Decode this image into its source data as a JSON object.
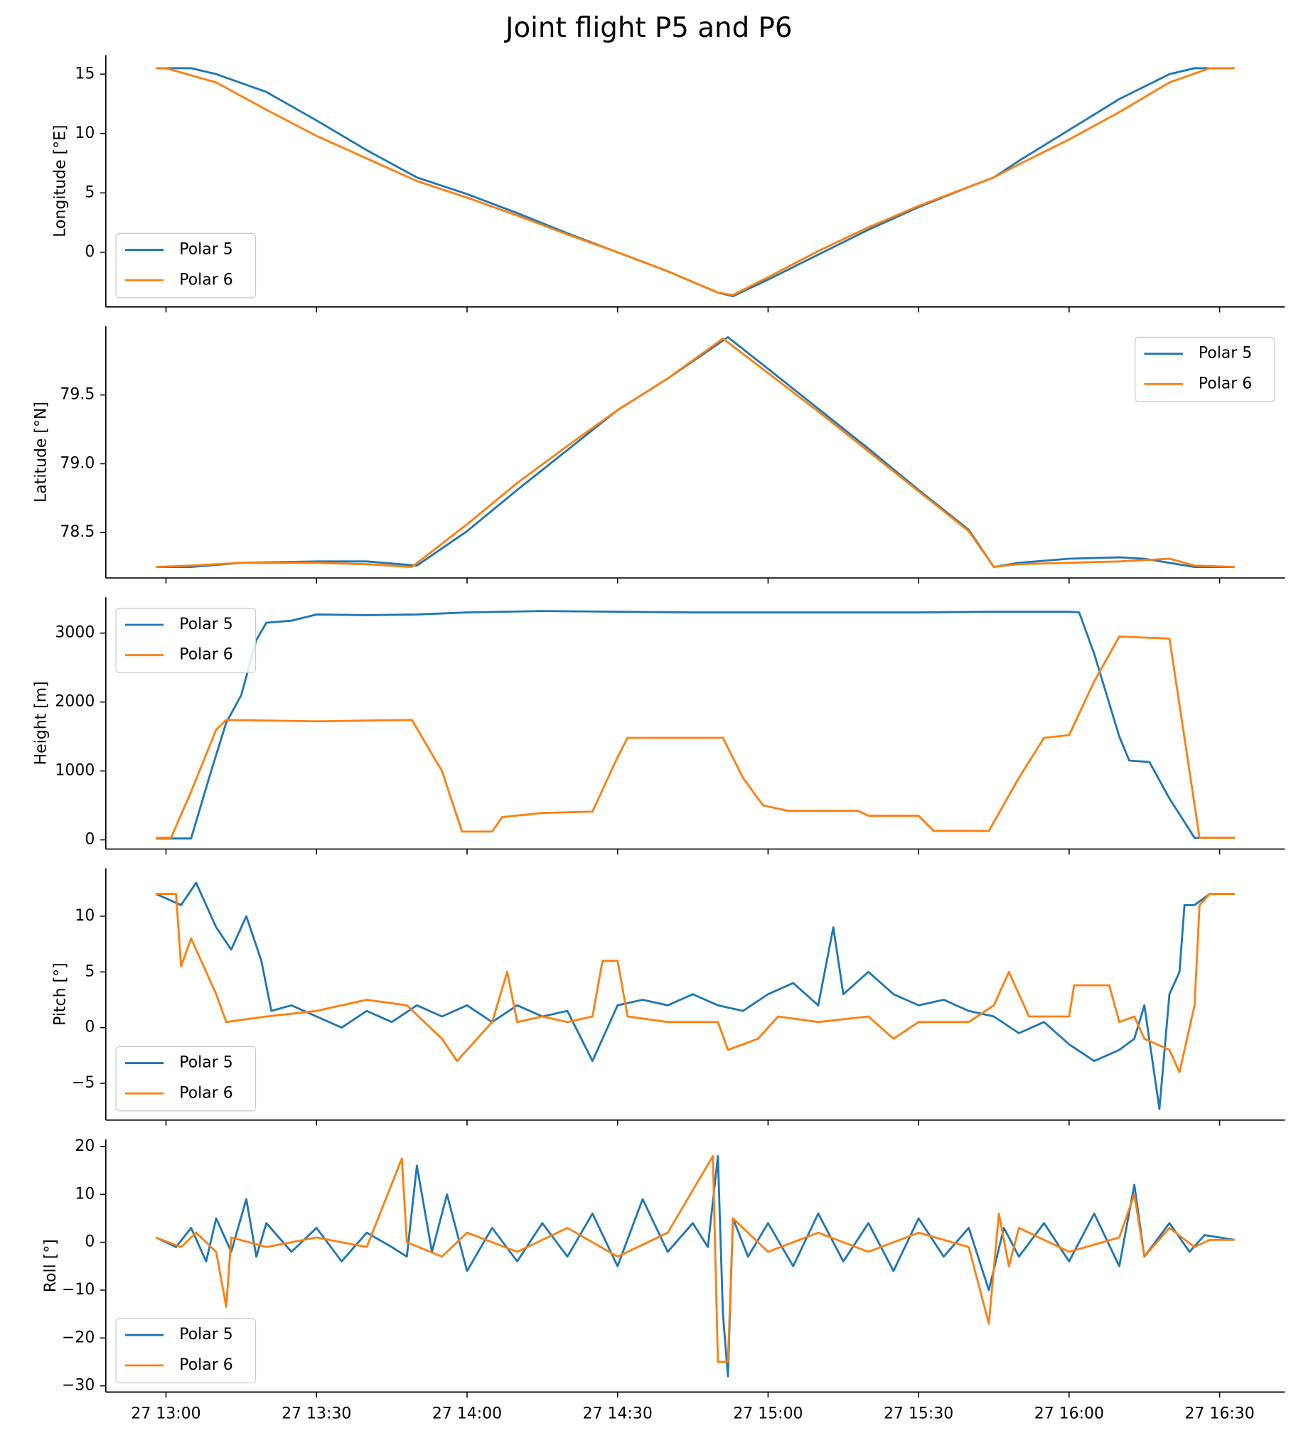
{
  "title": "Joint flight P5 and P6",
  "chart_data": [
    {
      "type": "line",
      "ylabel": "Longitude [°E]",
      "xlim": [
        "27 12:48",
        "27 16:43"
      ],
      "ylim": [
        -4.6,
        16.6
      ],
      "yticks": [
        0,
        5,
        10,
        15
      ],
      "legend": "lower left",
      "series": [
        {
          "name": "Polar 5",
          "color": "#1f77b4",
          "x": [
            "27 12:58",
            "27 13:05",
            "27 13:10",
            "27 13:20",
            "27 13:30",
            "27 13:40",
            "27 13:50",
            "27 14:00",
            "27 14:10",
            "27 14:20",
            "27 14:30",
            "27 14:40",
            "27 14:50",
            "27 14:53",
            "27 15:00",
            "27 15:10",
            "27 15:20",
            "27 15:30",
            "27 15:40",
            "27 15:45",
            "27 15:50",
            "27 16:00",
            "27 16:10",
            "27 16:20",
            "27 16:25",
            "27 16:33"
          ],
          "values": [
            15.5,
            15.5,
            15.0,
            13.5,
            11.1,
            8.6,
            6.3,
            4.9,
            3.3,
            1.6,
            0,
            -1.6,
            -3.4,
            -3.7,
            -2.3,
            -0.2,
            1.9,
            3.8,
            5.5,
            6.3,
            7.7,
            10.3,
            12.9,
            15.0,
            15.5,
            15.5
          ]
        },
        {
          "name": "Polar 6",
          "color": "#ff7f0e",
          "x": [
            "27 12:58",
            "27 13:00",
            "27 13:10",
            "27 13:20",
            "27 13:30",
            "27 13:40",
            "27 13:50",
            "27 14:00",
            "27 14:10",
            "27 14:20",
            "27 14:30",
            "27 14:40",
            "27 14:50",
            "27 14:53",
            "27 15:00",
            "27 15:10",
            "27 15:20",
            "27 15:30",
            "27 15:40",
            "27 15:45",
            "27 15:50",
            "27 16:00",
            "27 16:10",
            "27 16:20",
            "27 16:28",
            "27 16:33"
          ],
          "values": [
            15.5,
            15.5,
            14.3,
            12.0,
            9.8,
            7.9,
            6.0,
            4.6,
            3.1,
            1.5,
            0,
            -1.6,
            -3.4,
            -3.6,
            -2.1,
            0.1,
            2.1,
            3.9,
            5.5,
            6.3,
            7.4,
            9.5,
            11.8,
            14.3,
            15.5,
            15.5
          ]
        }
      ]
    },
    {
      "type": "line",
      "ylabel": "Latitude [°N]",
      "xlim": [
        "27 12:48",
        "27 16:43"
      ],
      "ylim": [
        78.17,
        80.0
      ],
      "yticks": [
        78.5,
        {
          "value": 79,
          "label": "79.0"
        },
        79.5
      ],
      "legend": "upper right",
      "series": [
        {
          "name": "Polar 5",
          "color": "#1f77b4",
          "x": [
            "27 12:58",
            "27 13:05",
            "27 13:15",
            "27 13:30",
            "27 13:40",
            "27 13:50",
            "27 14:00",
            "27 14:10",
            "27 14:20",
            "27 14:30",
            "27 14:40",
            "27 14:52",
            "27 15:00",
            "27 15:10",
            "27 15:20",
            "27 15:30",
            "27 15:40",
            "27 15:45",
            "27 15:50",
            "27 16:00",
            "27 16:10",
            "27 16:15",
            "27 16:20",
            "27 16:25",
            "27 16:33"
          ],
          "values": [
            78.25,
            78.25,
            78.28,
            78.29,
            78.29,
            78.26,
            78.51,
            78.81,
            79.1,
            79.39,
            79.62,
            79.92,
            79.69,
            79.4,
            79.11,
            78.81,
            78.52,
            78.25,
            78.28,
            78.31,
            78.32,
            78.31,
            78.28,
            78.25,
            78.25
          ]
        },
        {
          "name": "Polar 6",
          "color": "#ff7f0e",
          "x": [
            "27 12:58",
            "27 13:05",
            "27 13:15",
            "27 13:30",
            "27 13:40",
            "27 13:49",
            "27 14:00",
            "27 14:10",
            "27 14:20",
            "27 14:30",
            "27 14:40",
            "27 14:51",
            "27 15:00",
            "27 15:10",
            "27 15:20",
            "27 15:30",
            "27 15:40",
            "27 15:45",
            "27 15:50",
            "27 16:00",
            "27 16:10",
            "27 16:15",
            "27 16:20",
            "27 16:25",
            "27 16:33"
          ],
          "values": [
            78.25,
            78.26,
            78.28,
            78.28,
            78.27,
            78.25,
            78.56,
            78.86,
            79.13,
            79.39,
            79.62,
            79.91,
            79.66,
            79.38,
            79.09,
            78.8,
            78.51,
            78.25,
            78.27,
            78.28,
            78.29,
            78.3,
            78.31,
            78.26,
            78.25
          ]
        }
      ]
    },
    {
      "type": "line",
      "ylabel": "Height [m]",
      "xlim": [
        "27 12:48",
        "27 16:43"
      ],
      "ylim": [
        -133,
        3520
      ],
      "yticks": [
        0,
        1000,
        2000,
        3000
      ],
      "legend": "upper left",
      "series": [
        {
          "name": "Polar 5",
          "color": "#1f77b4",
          "x": [
            "27 12:58",
            "27 13:03",
            "27 13:05",
            "27 13:09",
            "27 13:12",
            "27 13:15",
            "27 13:18",
            "27 13:20",
            "27 13:25",
            "27 13:30",
            "27 13:40",
            "27 13:50",
            "27 14:00",
            "27 14:15",
            "27 14:30",
            "27 14:45",
            "27 15:00",
            "27 15:15",
            "27 15:30",
            "27 15:45",
            "27 16:00",
            "27 16:02",
            "27 16:05",
            "27 16:10",
            "27 16:12",
            "27 16:16",
            "27 16:20",
            "27 16:25",
            "27 16:33"
          ],
          "values": [
            20,
            20,
            20,
            1000,
            1700,
            2100,
            2900,
            3150,
            3180,
            3270,
            3260,
            3270,
            3300,
            3320,
            3310,
            3300,
            3300,
            3300,
            3300,
            3310,
            3310,
            3300,
            2700,
            1500,
            1150,
            1130,
            600,
            30,
            30
          ]
        },
        {
          "name": "Polar 6",
          "color": "#ff7f0e",
          "x": [
            "27 12:58",
            "27 13:01",
            "27 13:05",
            "27 13:10",
            "27 13:12",
            "27 13:30",
            "27 13:49",
            "27 13:55",
            "27 13:59",
            "27 14:05",
            "27 14:07",
            "27 14:15",
            "27 14:25",
            "27 14:30",
            "27 14:32",
            "27 14:51",
            "27 14:55",
            "27 14:59",
            "27 15:04",
            "27 15:18",
            "27 15:20",
            "27 15:30",
            "27 15:33",
            "27 15:44",
            "27 15:50",
            "27 15:55",
            "27 16:00",
            "27 16:05",
            "27 16:10",
            "27 16:20",
            "27 16:26",
            "27 16:33"
          ],
          "values": [
            30,
            30,
            700,
            1600,
            1740,
            1720,
            1740,
            1000,
            120,
            120,
            330,
            390,
            410,
            1200,
            1480,
            1480,
            900,
            500,
            420,
            420,
            350,
            350,
            130,
            130,
            900,
            1480,
            1520,
            2300,
            2950,
            2920,
            30,
            30
          ]
        }
      ]
    },
    {
      "type": "line",
      "ylabel": "Pitch [°]",
      "xlim": [
        "27 12:48",
        "27 16:43"
      ],
      "ylim": [
        -8.3,
        14.3
      ],
      "yticks": [
        {
          "value": -5,
          "label": "−5"
        },
        0,
        5,
        10
      ],
      "legend": "lower left",
      "series": [
        {
          "name": "Polar 5",
          "color": "#1f77b4",
          "x": [
            "27 12:58",
            "27 13:03",
            "27 13:06",
            "27 13:10",
            "27 13:13",
            "27 13:16",
            "27 13:19",
            "27 13:21",
            "27 13:25",
            "27 13:30",
            "27 13:35",
            "27 13:40",
            "27 13:45",
            "27 13:50",
            "27 13:55",
            "27 14:00",
            "27 14:05",
            "27 14:10",
            "27 14:15",
            "27 14:20",
            "27 14:25",
            "27 14:30",
            "27 14:35",
            "27 14:40",
            "27 14:45",
            "27 14:50",
            "27 14:55",
            "27 15:00",
            "27 15:05",
            "27 15:10",
            "27 15:13",
            "27 15:15",
            "27 15:20",
            "27 15:25",
            "27 15:30",
            "27 15:35",
            "27 15:40",
            "27 15:45",
            "27 15:50",
            "27 15:55",
            "27 16:00",
            "27 16:05",
            "27 16:10",
            "27 16:13",
            "27 16:15",
            "27 16:18",
            "27 16:20",
            "27 16:22",
            "27 16:23",
            "27 16:25",
            "27 16:28",
            "27 16:33"
          ],
          "values": [
            12,
            11,
            13,
            9,
            7,
            10,
            6,
            1.5,
            2,
            1,
            0,
            1.5,
            0.5,
            2,
            1,
            2,
            0.5,
            2,
            1,
            1.5,
            -3,
            2,
            2.5,
            2,
            3,
            2,
            1.5,
            3,
            4,
            2,
            9,
            3,
            5,
            3,
            2,
            2.5,
            1.5,
            1,
            -0.5,
            0.5,
            -1.5,
            -3,
            -2,
            -1,
            2,
            -7.3,
            3,
            5,
            11,
            11,
            12,
            12
          ]
        },
        {
          "name": "Polar 6",
          "color": "#ff7f0e",
          "x": [
            "27 12:58",
            "27 13:02",
            "27 13:03",
            "27 13:05",
            "27 13:08",
            "27 13:10",
            "27 13:12",
            "27 13:20",
            "27 13:30",
            "27 13:40",
            "27 13:48",
            "27 13:55",
            "27 13:58",
            "27 14:05",
            "27 14:08",
            "27 14:10",
            "27 14:15",
            "27 14:20",
            "27 14:25",
            "27 14:27",
            "27 14:30",
            "27 14:32",
            "27 14:40",
            "27 14:50",
            "27 14:52",
            "27 14:58",
            "27 15:02",
            "27 15:10",
            "27 15:20",
            "27 15:25",
            "27 15:30",
            "27 15:40",
            "27 15:45",
            "27 15:48",
            "27 15:50",
            "27 15:52",
            "27 16:00",
            "27 16:01",
            "27 16:08",
            "27 16:10",
            "27 16:13",
            "27 16:15",
            "27 16:20",
            "27 16:22",
            "27 16:25",
            "27 16:26",
            "27 16:28",
            "27 16:33"
          ],
          "values": [
            12,
            12,
            5.5,
            8,
            5,
            3,
            0.5,
            1,
            1.5,
            2.5,
            2,
            -1,
            -3,
            0.5,
            5,
            0.5,
            1,
            0.5,
            1,
            6,
            6,
            1,
            0.5,
            0.5,
            -2,
            -1,
            1,
            0.5,
            1,
            -1,
            0.5,
            0.5,
            2,
            5,
            3,
            1,
            1,
            3.8,
            3.8,
            0.5,
            1,
            -1,
            -2,
            -4,
            2,
            11,
            12,
            12
          ]
        }
      ]
    },
    {
      "type": "line",
      "ylabel": "Roll [°]",
      "xlim": [
        "27 12:48",
        "27 16:43"
      ],
      "ylim": [
        -31.3,
        21.5
      ],
      "yticks": [
        {
          "value": -30,
          "label": "−30"
        },
        {
          "value": -20,
          "label": "−20"
        },
        {
          "value": -10,
          "label": "−10"
        },
        0,
        10,
        20
      ],
      "legend": "lower left",
      "xticks": [
        "27 13:00",
        "27 13:30",
        "27 14:00",
        "27 14:30",
        "27 15:00",
        "27 15:30",
        "27 16:00",
        "27 16:30"
      ],
      "series": [
        {
          "name": "Polar 5",
          "color": "#1f77b4",
          "x": [
            "27 12:58",
            "27 13:02",
            "27 13:05",
            "27 13:08",
            "27 13:10",
            "27 13:13",
            "27 13:16",
            "27 13:18",
            "27 13:20",
            "27 13:25",
            "27 13:30",
            "27 13:35",
            "27 13:40",
            "27 13:45",
            "27 13:48",
            "27 13:50",
            "27 13:53",
            "27 13:56",
            "27 14:00",
            "27 14:05",
            "27 14:10",
            "27 14:15",
            "27 14:20",
            "27 14:25",
            "27 14:30",
            "27 14:35",
            "27 14:40",
            "27 14:45",
            "27 14:48",
            "27 14:50",
            "27 14:51",
            "27 14:52",
            "27 14:53",
            "27 14:56",
            "27 15:00",
            "27 15:05",
            "27 15:10",
            "27 15:15",
            "27 15:20",
            "27 15:25",
            "27 15:30",
            "27 15:35",
            "27 15:40",
            "27 15:44",
            "27 15:47",
            "27 15:50",
            "27 15:55",
            "27 16:00",
            "27 16:05",
            "27 16:10",
            "27 16:13",
            "27 16:15",
            "27 16:20",
            "27 16:24",
            "27 16:27",
            "27 16:33"
          ],
          "values": [
            1,
            -1,
            3,
            -4,
            5,
            -2,
            9,
            -3,
            4,
            -2,
            3,
            -4,
            2,
            -1,
            -3,
            16,
            -2,
            10,
            -6,
            3,
            -4,
            4,
            -3,
            6,
            -5,
            9,
            -2,
            4,
            -1,
            18,
            -15,
            -28,
            5,
            -3,
            4,
            -5,
            6,
            -4,
            4,
            -6,
            5,
            -3,
            3,
            -10,
            3,
            -3,
            4,
            -4,
            6,
            -5,
            12,
            -3,
            4,
            -2,
            1.5,
            0.5
          ]
        },
        {
          "name": "Polar 6",
          "color": "#ff7f0e",
          "x": [
            "27 12:58",
            "27 13:03",
            "27 13:06",
            "27 13:10",
            "27 13:12",
            "27 13:13",
            "27 13:20",
            "27 13:30",
            "27 13:40",
            "27 13:47",
            "27 13:48",
            "27 13:55",
            "27 14:00",
            "27 14:10",
            "27 14:20",
            "27 14:30",
            "27 14:40",
            "27 14:49",
            "27 14:50",
            "27 14:52",
            "27 14:53",
            "27 15:00",
            "27 15:10",
            "27 15:20",
            "27 15:30",
            "27 15:40",
            "27 15:44",
            "27 15:46",
            "27 15:48",
            "27 15:50",
            "27 16:00",
            "27 16:10",
            "27 16:13",
            "27 16:15",
            "27 16:20",
            "27 16:25",
            "27 16:28",
            "27 16:33"
          ],
          "values": [
            1,
            -1,
            2,
            -2,
            -13.5,
            1,
            -1,
            1,
            -1,
            17.5,
            0,
            -3,
            2,
            -2,
            3,
            -3,
            2,
            18,
            -25,
            -25,
            5,
            -2,
            2,
            -2,
            2,
            -1,
            -17,
            6,
            -5,
            3,
            -2,
            1,
            10,
            -3,
            3,
            -1,
            0.5,
            0.5
          ]
        }
      ]
    }
  ]
}
